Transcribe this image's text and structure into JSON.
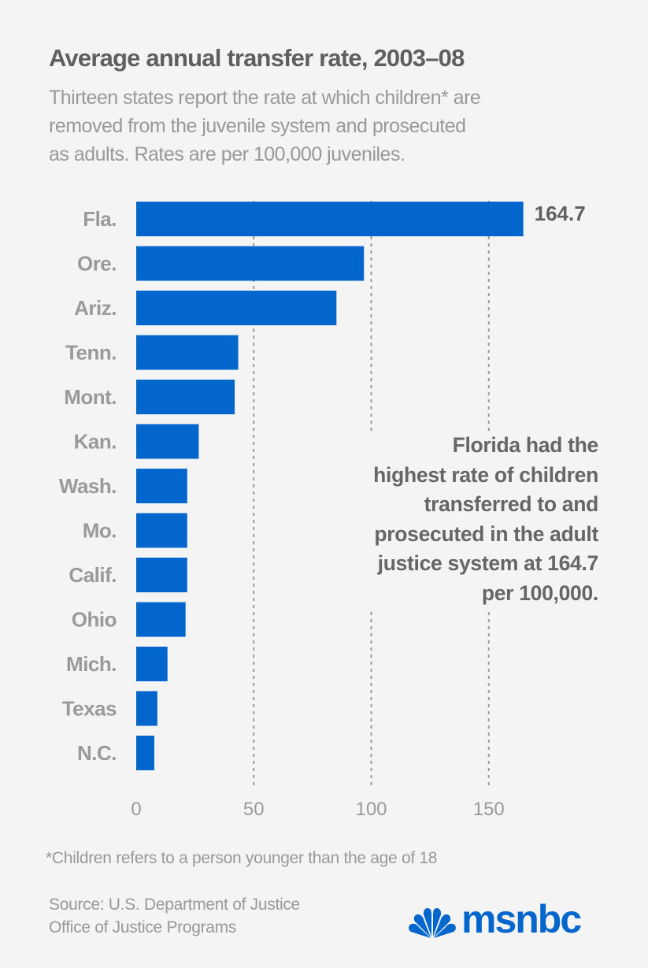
{
  "header": {
    "title": "Average annual transfer rate, 2003–08",
    "subtitle_lines": [
      "Thirteen states report the rate at which children* are",
      "removed from the juvenile system and prosecuted",
      "as adults. Rates are per 100,000 juveniles."
    ]
  },
  "annotation": {
    "lines": [
      "Florida had the",
      "highest rate of children",
      "transferred to and",
      "prosecuted in the adult",
      "justice system at 164.7",
      "per 100,000."
    ]
  },
  "footnote": "*Children refers to a person younger than the age of 18",
  "source": {
    "lines": [
      "Source: U.S. Department of Justice",
      "Office of Justice Programs"
    ]
  },
  "logo": {
    "icon": "peacock-icon",
    "text": "msnbc"
  },
  "colors": {
    "bar": "#0366cc",
    "background": "#f4f4f4",
    "title": "#5f5f5f",
    "subtitle": "#999999",
    "gridline": "#9a9a9a",
    "brand": "#0366cc"
  },
  "chart_data": {
    "type": "bar",
    "orientation": "horizontal",
    "title": "Average annual transfer rate, 2003–08",
    "xlabel": "",
    "ylabel": "",
    "categories": [
      "Fla.",
      "Ore.",
      "Ariz.",
      "Tenn.",
      "Mont.",
      "Kan.",
      "Wash.",
      "Mo.",
      "Calif.",
      "Ohio",
      "Mich.",
      "Texas",
      "N.C."
    ],
    "values": [
      164.7,
      96.9,
      85.2,
      43.4,
      41.9,
      26.6,
      21.7,
      21.7,
      21.7,
      21.0,
      13.3,
      9.0,
      7.7
    ],
    "value_labels": [
      {
        "category": "Fla.",
        "text": "164.7"
      }
    ],
    "xlim": [
      0,
      200
    ],
    "xticks": [
      0,
      50,
      100,
      150
    ],
    "xtick_labels": [
      "0",
      "50",
      "100",
      "150"
    ],
    "grid": "vertical dotted",
    "legend": "none"
  }
}
